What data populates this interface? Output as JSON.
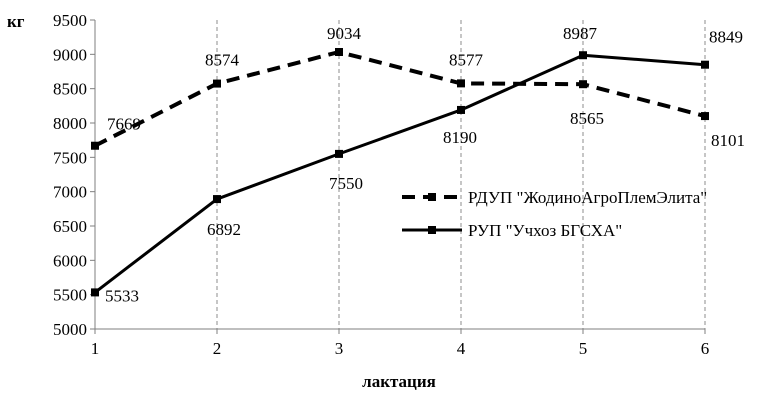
{
  "chart_data": {
    "type": "line",
    "title": "",
    "xlabel": "лактация",
    "ylabel": "кг",
    "categories": [
      "1",
      "2",
      "3",
      "4",
      "5",
      "6"
    ],
    "ylim": [
      5000,
      9500
    ],
    "yticks": [
      "5000",
      "5500",
      "6000",
      "6500",
      "7000",
      "7500",
      "8000",
      "8500",
      "9000",
      "9500"
    ],
    "grid": "vertical dashed",
    "legend_position": "right",
    "series": [
      {
        "name": "РДУП \"ЖодиноАгроПлемЭлита\"",
        "values": [
          7669,
          8574,
          9034,
          8577,
          8565,
          8101
        ],
        "labels": [
          "7669",
          "8574",
          "9034",
          "8577",
          "8565",
          "8101"
        ],
        "line_style": "dashed",
        "color": "#000000"
      },
      {
        "name": "РУП \"Учхоз БГСХА\"",
        "values": [
          5533,
          6892,
          7550,
          8190,
          8987,
          8849
        ],
        "labels": [
          "5533",
          "6892",
          "7550",
          "8190",
          "8987",
          "8849"
        ],
        "line_style": "solid",
        "color": "#000000"
      }
    ]
  }
}
